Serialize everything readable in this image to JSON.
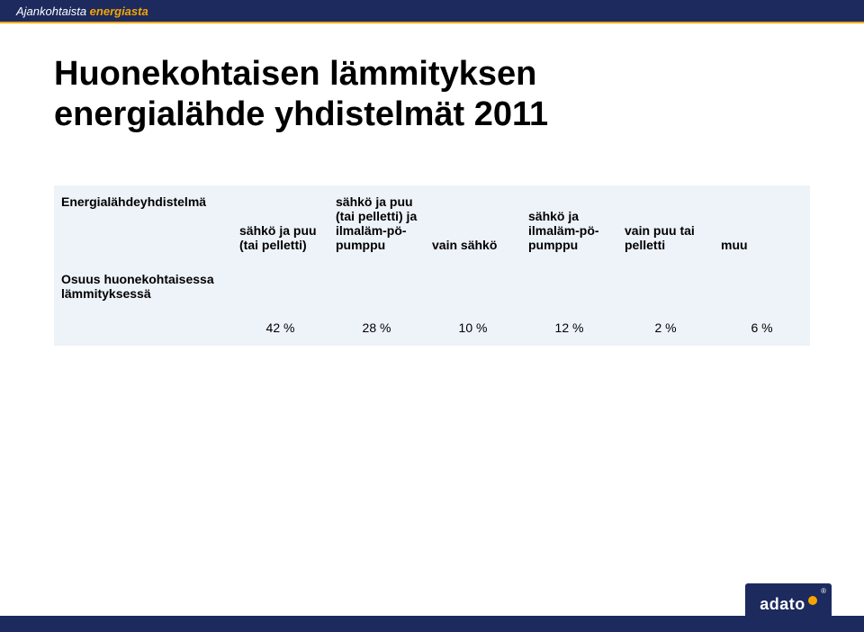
{
  "header": {
    "text_plain": "Ajankohtaista ",
    "text_em": "energiasta"
  },
  "title": {
    "line1": "Huonekohtaisen lämmityksen",
    "line2": "energialähde yhdistelmät 2011"
  },
  "table": {
    "row_header_label": "Energialähdeyhdistelmä",
    "row_pct_label": "Osuus huonekohtaisessa lämmityksessä",
    "columns": [
      {
        "header": "sähkö ja puu (tai pelletti)",
        "pct": "42 %"
      },
      {
        "header": "sähkö ja puu (tai pelletti) ja ilmaläm-pö-pumppu",
        "pct": "28 %"
      },
      {
        "header": "vain sähkö",
        "pct": "10 %"
      },
      {
        "header": "sähkö ja ilmaläm-pö-pumppu",
        "pct": "12 %"
      },
      {
        "header": "vain puu tai pelletti",
        "pct": "2 %"
      },
      {
        "header": "muu",
        "pct": "6 %"
      }
    ],
    "colors": {
      "row_bg": "#eef2f9",
      "text": "#000000"
    }
  },
  "logo": {
    "text": "adato"
  }
}
